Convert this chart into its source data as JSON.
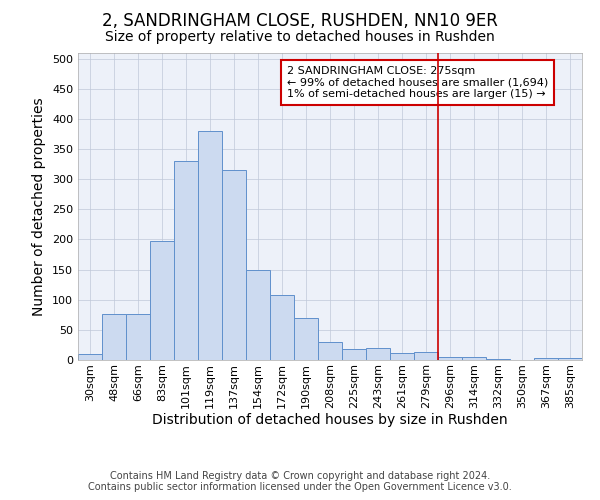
{
  "title": "2, SANDRINGHAM CLOSE, RUSHDEN, NN10 9ER",
  "subtitle": "Size of property relative to detached houses in Rushden",
  "xlabel": "Distribution of detached houses by size in Rushden",
  "ylabel": "Number of detached properties",
  "bar_labels": [
    "30sqm",
    "48sqm",
    "66sqm",
    "83sqm",
    "101sqm",
    "119sqm",
    "137sqm",
    "154sqm",
    "172sqm",
    "190sqm",
    "208sqm",
    "225sqm",
    "243sqm",
    "261sqm",
    "279sqm",
    "296sqm",
    "314sqm",
    "332sqm",
    "350sqm",
    "367sqm",
    "385sqm"
  ],
  "bar_values": [
    10,
    77,
    77,
    198,
    330,
    380,
    315,
    150,
    108,
    70,
    30,
    18,
    20,
    12,
    14,
    5,
    5,
    1,
    0,
    3,
    4
  ],
  "bar_color": "#ccdaf0",
  "bar_edge_color": "#6090cc",
  "background_color": "#edf1f9",
  "vline_color": "#cc0000",
  "annotation_text": "2 SANDRINGHAM CLOSE: 275sqm\n← 99% of detached houses are smaller (1,694)\n1% of semi-detached houses are larger (15) →",
  "annotation_box_color": "#ffffff",
  "annotation_box_edge_color": "#cc0000",
  "footer": "Contains HM Land Registry data © Crown copyright and database right 2024.\nContains public sector information licensed under the Open Government Licence v3.0.",
  "ylim": [
    0,
    510
  ],
  "yticks": [
    0,
    50,
    100,
    150,
    200,
    250,
    300,
    350,
    400,
    450,
    500
  ],
  "title_fontsize": 12,
  "subtitle_fontsize": 10,
  "axis_label_fontsize": 10,
  "tick_fontsize": 8,
  "footer_fontsize": 7,
  "annotation_fontsize": 8
}
